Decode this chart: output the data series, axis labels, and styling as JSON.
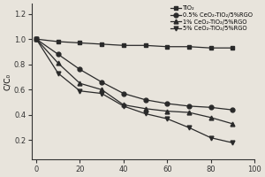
{
  "x": [
    0,
    10,
    20,
    30,
    40,
    50,
    60,
    70,
    80,
    90
  ],
  "series": [
    {
      "label": "TiO₂",
      "values": [
        1.0,
        0.98,
        0.97,
        0.96,
        0.95,
        0.95,
        0.94,
        0.94,
        0.93,
        0.93
      ],
      "marker": "s",
      "color": "#2a2a2a",
      "linestyle": "-"
    },
    {
      "label": "0.5% CeO₂-TiO₂/5%RGO",
      "values": [
        1.0,
        0.88,
        0.76,
        0.66,
        0.57,
        0.52,
        0.49,
        0.47,
        0.46,
        0.44
      ],
      "marker": "o",
      "color": "#2a2a2a",
      "linestyle": "-"
    },
    {
      "label": "1% CeO₂-TiO₂/5%RGO",
      "values": [
        1.0,
        0.81,
        0.65,
        0.6,
        0.48,
        0.45,
        0.43,
        0.42,
        0.38,
        0.33
      ],
      "marker": "^",
      "color": "#2a2a2a",
      "linestyle": "-"
    },
    {
      "label": "5% CeO₂-TiO₂/5%RGO",
      "values": [
        1.0,
        0.73,
        0.59,
        0.57,
        0.47,
        0.41,
        0.37,
        0.3,
        0.22,
        0.18
      ],
      "marker": "v",
      "color": "#2a2a2a",
      "linestyle": "-"
    }
  ],
  "xlabel": "",
  "ylabel": "C/C₀",
  "xlim": [
    -2,
    100
  ],
  "ylim": [
    0.05,
    1.28
  ],
  "yticks": [
    0.2,
    0.4,
    0.6,
    0.8,
    1.0,
    1.2
  ],
  "xticks": [
    0,
    20,
    40,
    60,
    80,
    100
  ],
  "background_color": "#e8e4dc",
  "legend_fontsize": 4.8,
  "axis_fontsize": 6.5,
  "tick_fontsize": 6,
  "linewidth": 0.9,
  "markersize": 3.5
}
